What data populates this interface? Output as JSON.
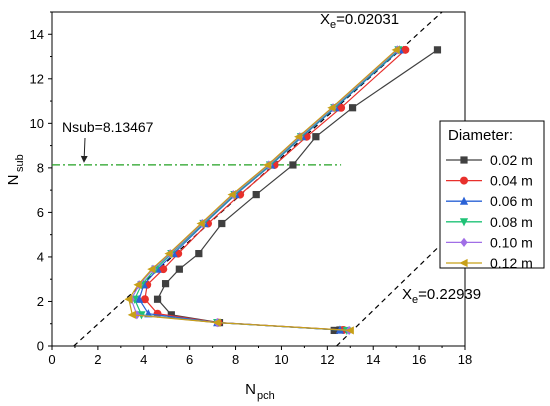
{
  "chart_data": {
    "type": "line",
    "xlabel": {
      "main": "N",
      "sub": "pch"
    },
    "ylabel": {
      "main": "N",
      "sub": "sub"
    },
    "xlim": [
      0,
      18
    ],
    "ylim": [
      0,
      15
    ],
    "x_ticks": [
      "0",
      "2",
      "4",
      "6",
      "8",
      "10",
      "12",
      "14",
      "16",
      "18"
    ],
    "y_ticks": [
      "0",
      "2",
      "4",
      "6",
      "8",
      "10",
      "12",
      "14"
    ],
    "legend": {
      "title": "Diameter:",
      "position": "right"
    },
    "series": [
      {
        "name": "0.02 m",
        "color": "#404040",
        "marker": "square",
        "points": [
          [
            12.3,
            0.7
          ],
          [
            12.55,
            0.72
          ],
          [
            7.3,
            1.05
          ],
          [
            5.2,
            1.4
          ],
          [
            4.6,
            2.1
          ],
          [
            4.95,
            2.8
          ],
          [
            5.55,
            3.45
          ],
          [
            6.4,
            4.15
          ],
          [
            7.4,
            5.5
          ],
          [
            8.9,
            6.8
          ],
          [
            10.5,
            8.13
          ],
          [
            11.5,
            9.4
          ],
          [
            13.1,
            10.7
          ],
          [
            16.8,
            13.3
          ]
        ]
      },
      {
        "name": "0.04 m",
        "color": "#e8302c",
        "marker": "circle",
        "points": [
          [
            12.7,
            0.72
          ],
          [
            7.25,
            1.05
          ],
          [
            4.6,
            1.45
          ],
          [
            4.05,
            2.1
          ],
          [
            4.15,
            2.75
          ],
          [
            4.85,
            3.45
          ],
          [
            5.5,
            4.15
          ],
          [
            6.8,
            5.5
          ],
          [
            8.2,
            6.8
          ],
          [
            9.7,
            8.13
          ],
          [
            11.1,
            9.4
          ],
          [
            12.6,
            10.7
          ],
          [
            15.4,
            13.3
          ]
        ]
      },
      {
        "name": "0.06 m",
        "color": "#2a62d6",
        "marker": "triangle-up",
        "points": [
          [
            12.55,
            0.72
          ],
          [
            7.2,
            1.05
          ],
          [
            4.2,
            1.45
          ],
          [
            3.8,
            2.1
          ],
          [
            4.0,
            2.75
          ],
          [
            4.6,
            3.45
          ],
          [
            5.3,
            4.15
          ],
          [
            6.65,
            5.5
          ],
          [
            8.0,
            6.8
          ],
          [
            9.55,
            8.13
          ],
          [
            10.9,
            9.4
          ],
          [
            12.35,
            10.7
          ],
          [
            15.15,
            13.3
          ]
        ]
      },
      {
        "name": "0.08 m",
        "color": "#1ec276",
        "marker": "triangle-down",
        "points": [
          [
            12.85,
            0.7
          ],
          [
            7.2,
            1.05
          ],
          [
            3.9,
            1.4
          ],
          [
            3.6,
            2.1
          ],
          [
            3.9,
            2.75
          ],
          [
            4.5,
            3.45
          ],
          [
            5.2,
            4.15
          ],
          [
            6.6,
            5.5
          ],
          [
            7.95,
            6.8
          ],
          [
            9.5,
            8.13
          ],
          [
            10.85,
            9.4
          ],
          [
            12.3,
            10.7
          ],
          [
            15.1,
            13.3
          ]
        ]
      },
      {
        "name": "0.10 m",
        "color": "#a06ee6",
        "marker": "diamond",
        "points": [
          [
            12.95,
            0.7
          ],
          [
            7.2,
            1.05
          ],
          [
            3.7,
            1.4
          ],
          [
            3.45,
            2.1
          ],
          [
            3.8,
            2.75
          ],
          [
            4.4,
            3.45
          ],
          [
            5.15,
            4.15
          ],
          [
            6.55,
            5.5
          ],
          [
            7.9,
            6.8
          ],
          [
            9.45,
            8.13
          ],
          [
            10.8,
            9.4
          ],
          [
            12.25,
            10.7
          ],
          [
            15.05,
            13.3
          ]
        ]
      },
      {
        "name": "0.12 m",
        "color": "#c8a018",
        "marker": "triangle-left",
        "points": [
          [
            13.0,
            0.7
          ],
          [
            7.2,
            1.05
          ],
          [
            3.5,
            1.4
          ],
          [
            3.35,
            2.1
          ],
          [
            3.75,
            2.75
          ],
          [
            4.35,
            3.45
          ],
          [
            5.1,
            4.15
          ],
          [
            6.5,
            5.5
          ],
          [
            7.85,
            6.8
          ],
          [
            9.4,
            8.13
          ],
          [
            10.75,
            9.4
          ],
          [
            12.2,
            10.7
          ],
          [
            15.0,
            13.3
          ]
        ]
      }
    ],
    "reference_lines": [
      {
        "label": "X",
        "label_sub": "e",
        "label_value": "=0.02031",
        "points": [
          [
            0.95,
            0
          ],
          [
            17.0,
            15
          ]
        ]
      },
      {
        "label": "X",
        "label_sub": "e",
        "label_value": "=0.22939",
        "points": [
          [
            12.4,
            0
          ],
          [
            17.0,
            4.6
          ]
        ]
      }
    ],
    "hline": {
      "y": 8.13467,
      "label": "Nsub=8.13467",
      "color": "#22a022"
    }
  }
}
